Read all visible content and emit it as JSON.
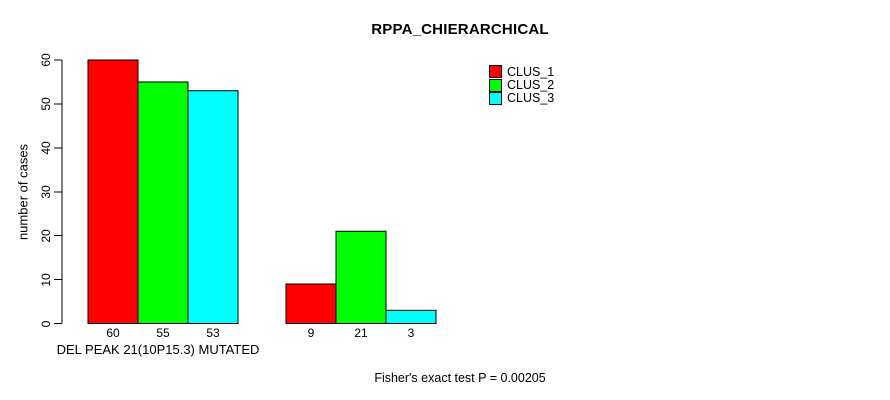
{
  "figure": {
    "background": "#ffffff",
    "axis_color": "#000000",
    "bar_border_color": "#000000"
  },
  "chart_data": {
    "type": "bar",
    "title": "RPPA_CHIERARCHICAL",
    "ylabel": "number of cases",
    "xlabel": "DEL PEAK 21(10P15.3) MUTATED",
    "annotation": "Fisher's exact test P = 0.00205",
    "ylim": [
      0,
      60
    ],
    "yticks": [
      0,
      10,
      20,
      30,
      40,
      50,
      60
    ],
    "groups": 2,
    "series": [
      {
        "name": "CLUS_1",
        "color": "#ff0000",
        "values": [
          60,
          9
        ]
      },
      {
        "name": "CLUS_2",
        "color": "#00ff00",
        "values": [
          55,
          21
        ]
      },
      {
        "name": "CLUS_3",
        "color": "#00ffff",
        "values": [
          53,
          3
        ]
      }
    ],
    "bar_value_labels": [
      [
        "60",
        "55",
        "53"
      ],
      [
        "9",
        "21",
        "3"
      ]
    ],
    "legend_position": "top-right",
    "grid": false
  }
}
